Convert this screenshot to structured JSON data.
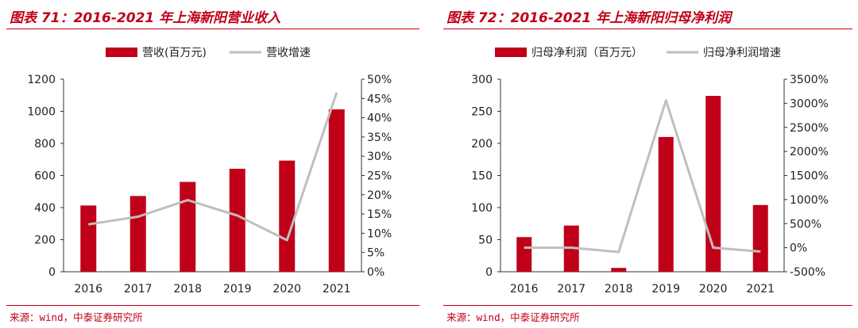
{
  "charts": [
    {
      "title": "图表 71：2016-2021 年上海新阳营业收入",
      "source": "来源：wind，中泰证券研究所",
      "chart_data": {
        "type": "bar",
        "categories": [
          "2016",
          "2017",
          "2018",
          "2019",
          "2020",
          "2021"
        ],
        "series": [
          {
            "name": "营收(百万元)",
            "type": "bar",
            "axis": "left",
            "color": "#c00018",
            "values": [
              413,
              472,
              560,
              642,
              693,
              1012
            ]
          },
          {
            "name": "营收增速",
            "type": "line",
            "axis": "right",
            "color": "#bfbfbf",
            "values": [
              12.3,
              14.3,
              18.6,
              14.6,
              8.2,
              46.5
            ]
          }
        ],
        "y_left": {
          "min": 0,
          "max": 1200,
          "step": 200,
          "ticks": [
            "0",
            "200",
            "400",
            "600",
            "800",
            "1000",
            "1200"
          ]
        },
        "y_right": {
          "min": 0,
          "max": 50,
          "step": 5,
          "ticks": [
            "0%",
            "5%",
            "10%",
            "15%",
            "20%",
            "25%",
            "30%",
            "35%",
            "40%",
            "45%",
            "50%"
          ]
        },
        "legend": "top-center"
      }
    },
    {
      "title": "图表 72：2016-2021 年上海新阳归母净利润",
      "source": "来源：wind，中泰证券研究所",
      "chart_data": {
        "type": "bar",
        "categories": [
          "2016",
          "2017",
          "2018",
          "2019",
          "2020",
          "2021"
        ],
        "series": [
          {
            "name": "归母净利润（百万元）",
            "type": "bar",
            "axis": "left",
            "color": "#c00018",
            "values": [
              54,
              72,
              6,
              210,
              274,
              104
            ]
          },
          {
            "name": "归母净利润增速",
            "type": "line",
            "axis": "right",
            "color": "#bfbfbf",
            "values": [
              0,
              0,
              -90,
              3060,
              0,
              -80
            ]
          }
        ],
        "y_left": {
          "min": 0,
          "max": 300,
          "step": 50,
          "ticks": [
            "0",
            "50",
            "100",
            "150",
            "200",
            "250",
            "300"
          ]
        },
        "y_right": {
          "min": -500,
          "max": 3500,
          "step": 500,
          "ticks": [
            "-500%",
            "0%",
            "500%",
            "1000%",
            "1500%",
            "2000%",
            "2500%",
            "3000%",
            "3500%"
          ]
        },
        "legend": "top-center"
      }
    }
  ]
}
